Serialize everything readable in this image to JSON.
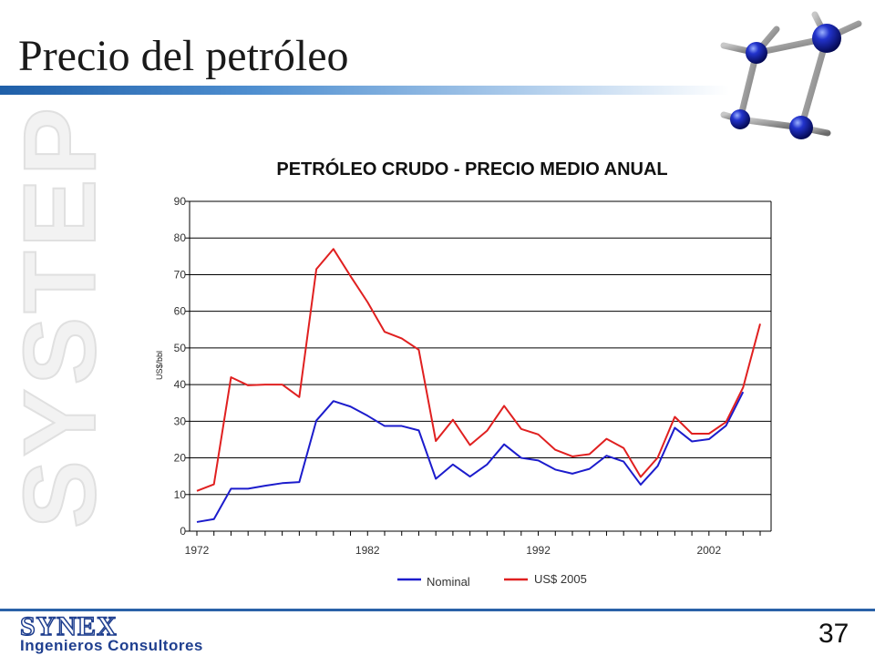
{
  "slide": {
    "title": "Precio del petróleo",
    "watermark": "SYSTEP",
    "page_number": "37"
  },
  "footer": {
    "logo_text": "SYNEX",
    "logo_subtitle": "Ingenieros Consultores"
  },
  "colors": {
    "nominal": "#1c1ccc",
    "real": "#e02020",
    "accent": "#2a62a8"
  },
  "icons": [
    "molecule-icon"
  ],
  "chart_data": {
    "type": "line",
    "title": "PETRÓLEO CRUDO - PRECIO MEDIO ANUAL",
    "ylabel": "US$/bbl",
    "xlabel": "",
    "ylim": [
      0,
      90
    ],
    "yticks": [
      0,
      10,
      20,
      30,
      40,
      50,
      60,
      70,
      80,
      90
    ],
    "xlim": [
      1972,
      2005
    ],
    "xticks": [
      1972,
      1982,
      1992,
      2002
    ],
    "grid": true,
    "legend": "bottom-center",
    "x": [
      1972,
      1973,
      1974,
      1975,
      1976,
      1977,
      1978,
      1979,
      1980,
      1981,
      1982,
      1983,
      1984,
      1985,
      1986,
      1987,
      1988,
      1989,
      1990,
      1991,
      1992,
      1993,
      1994,
      1995,
      1996,
      1997,
      1998,
      1999,
      2000,
      2001,
      2002,
      2003,
      2004,
      2005
    ],
    "series": [
      {
        "name": "Nominal",
        "color": "#1c1ccc",
        "values": [
          2.5,
          3.3,
          11.6,
          11.6,
          12.4,
          13.1,
          13.4,
          30.2,
          35.5,
          34.0,
          31.5,
          28.7,
          28.7,
          27.5,
          14.3,
          18.2,
          14.9,
          18.2,
          23.7,
          20.0,
          19.3,
          16.8,
          15.7,
          17.0,
          20.6,
          19.0,
          12.7,
          17.8,
          28.2,
          24.5,
          25.1,
          28.8,
          38.0,
          null
        ]
      },
      {
        "name": "US$ 2005",
        "color": "#e02020",
        "values": [
          11.0,
          12.8,
          42.0,
          39.8,
          40.0,
          40.0,
          36.6,
          71.5,
          77.0,
          69.6,
          62.5,
          54.4,
          52.6,
          49.5,
          24.6,
          30.4,
          23.5,
          27.4,
          34.2,
          27.9,
          26.4,
          22.2,
          20.4,
          21.0,
          25.2,
          22.7,
          14.8,
          20.1,
          31.2,
          26.6,
          26.6,
          29.8,
          39.2,
          56.6
        ]
      }
    ]
  }
}
